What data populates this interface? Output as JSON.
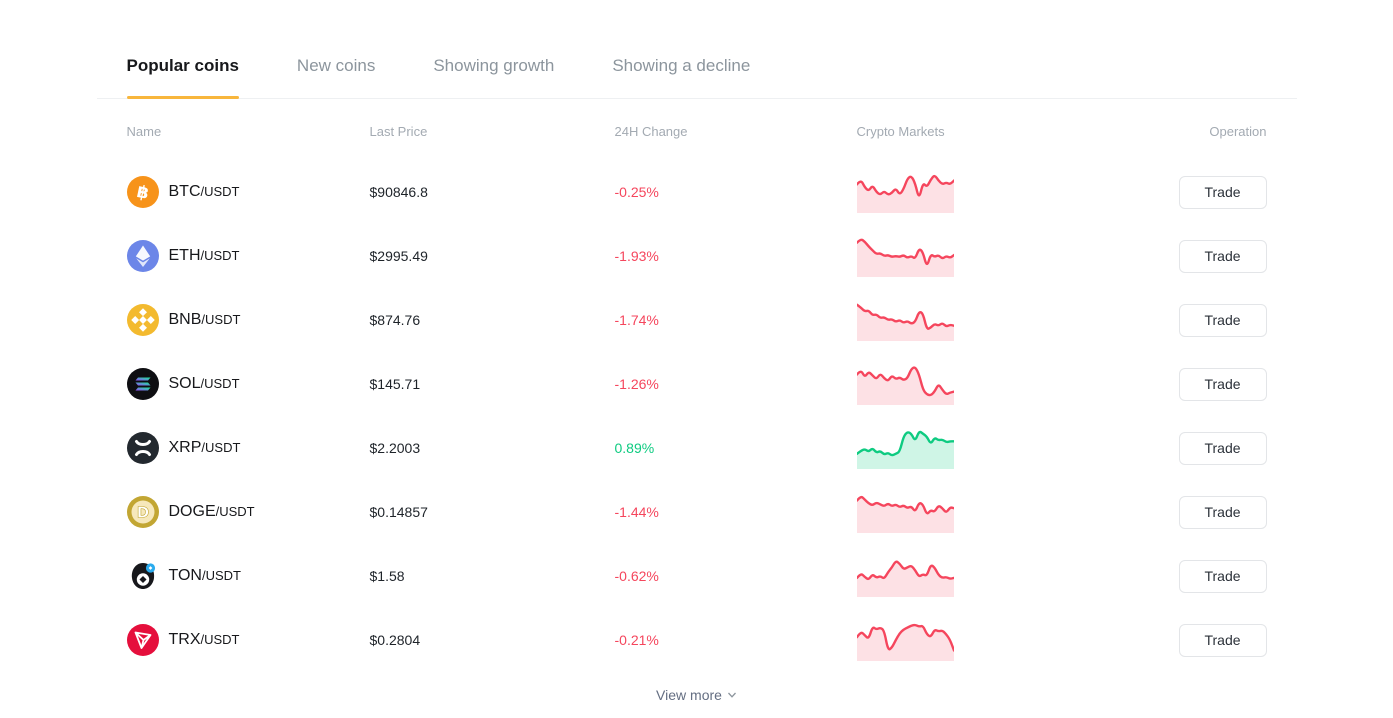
{
  "tabs": {
    "items": [
      {
        "label": "Popular coins",
        "active": true
      },
      {
        "label": "New coins",
        "active": false
      },
      {
        "label": "Showing growth",
        "active": false
      },
      {
        "label": "Showing a decline",
        "active": false
      }
    ]
  },
  "table": {
    "headers": {
      "name": "Name",
      "price": "Last Price",
      "change": "24H Change",
      "markets": "Crypto Markets",
      "operation": "Operation"
    },
    "trade_label": "Trade",
    "rows": [
      {
        "symbol": "BTC",
        "quote": "/USDT",
        "icon": "btc-icon",
        "price": "$90846.8",
        "change": "-0.25%",
        "direction": "down",
        "spark": [
          14,
          9,
          17,
          21,
          15,
          22,
          25,
          21,
          25,
          23,
          18,
          25,
          19,
          8,
          5,
          13,
          30,
          12,
          17,
          9,
          4,
          10,
          14,
          12,
          14,
          10
        ]
      },
      {
        "symbol": "ETH",
        "quote": "/USDT",
        "icon": "eth-icon",
        "price": "$2995.49",
        "change": "-1.93%",
        "direction": "down",
        "spark": [
          8,
          4,
          7,
          12,
          16,
          20,
          19,
          22,
          21,
          23,
          22,
          23,
          21,
          24,
          22,
          25,
          14,
          18,
          34,
          20,
          23,
          21,
          25,
          22,
          24,
          21
        ]
      },
      {
        "symbol": "BNB",
        "quote": "/USDT",
        "icon": "bnb-icon",
        "price": "$874.76",
        "change": "-1.74%",
        "direction": "down",
        "spark": [
          6,
          9,
          13,
          12,
          17,
          16,
          20,
          19,
          22,
          21,
          24,
          22,
          25,
          23,
          26,
          24,
          13,
          15,
          32,
          30,
          26,
          28,
          25,
          29,
          27,
          28
        ]
      },
      {
        "symbol": "SOL",
        "quote": "/USDT",
        "icon": "sol-icon",
        "price": "$145.71",
        "change": "-1.26%",
        "direction": "down",
        "spark": [
          12,
          7,
          15,
          9,
          13,
          17,
          11,
          16,
          19,
          13,
          17,
          15,
          18,
          16,
          6,
          4,
          12,
          28,
          33,
          34,
          30,
          22,
          28,
          33,
          31,
          30
        ]
      },
      {
        "symbol": "XRP",
        "quote": "/USDT",
        "icon": "xrp-icon",
        "price": "$2.2003",
        "change": "0.89%",
        "direction": "up",
        "spark": [
          28,
          25,
          23,
          26,
          22,
          27,
          25,
          29,
          27,
          30,
          28,
          26,
          10,
          5,
          7,
          15,
          4,
          7,
          10,
          18,
          11,
          14,
          13,
          16,
          15,
          15
        ]
      },
      {
        "symbol": "DOGE",
        "quote": "/USDT",
        "icon": "doge-icon",
        "price": "$0.14857",
        "change": "-1.44%",
        "direction": "down",
        "spark": [
          10,
          5,
          9,
          13,
          15,
          12,
          14,
          16,
          13,
          16,
          14,
          17,
          15,
          18,
          16,
          22,
          12,
          14,
          25,
          20,
          22,
          15,
          18,
          23,
          17,
          18
        ]
      },
      {
        "symbol": "TON",
        "quote": "/USDT",
        "icon": "ton-icon",
        "price": "$1.58",
        "change": "-0.62%",
        "direction": "down",
        "spark": [
          24,
          19,
          23,
          26,
          20,
          24,
          22,
          25,
          18,
          13,
          6,
          9,
          15,
          13,
          11,
          16,
          23,
          20,
          22,
          10,
          13,
          21,
          24,
          23,
          25,
          24
        ]
      },
      {
        "symbol": "TRX",
        "quote": "/USDT",
        "icon": "trx-icon",
        "price": "$0.2804",
        "change": "-0.21%",
        "direction": "down",
        "spark": [
          19,
          13,
          17,
          21,
          8,
          11,
          9,
          12,
          33,
          30,
          22,
          15,
          11,
          9,
          7,
          6,
          8,
          7,
          16,
          19,
          11,
          13,
          12,
          16,
          22,
          33
        ]
      }
    ]
  },
  "footer": {
    "view_more": "View more",
    "chevron_icon": "chevron-down-icon"
  },
  "colors": {
    "accent": "#F8B63C",
    "up": "#0ECB81",
    "down": "#F5465D",
    "up_fill_opacity": 0.2,
    "down_fill_opacity": 0.16
  }
}
